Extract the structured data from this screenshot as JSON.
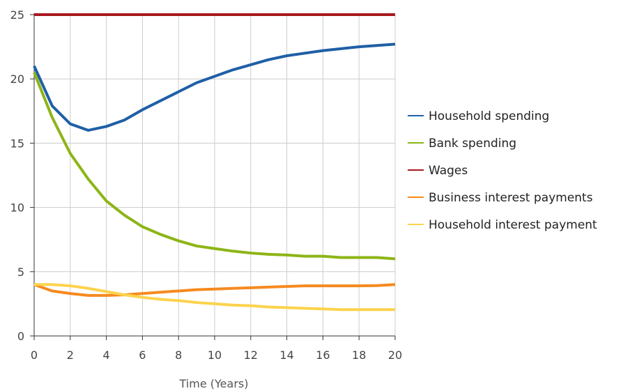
{
  "chart_data": {
    "type": "line",
    "title": "",
    "xlabel": "Time (Years)",
    "ylabel": "",
    "xlim": [
      0,
      20
    ],
    "ylim": [
      0,
      25
    ],
    "x_ticks": [
      0,
      2,
      4,
      6,
      8,
      10,
      12,
      14,
      16,
      18,
      20
    ],
    "y_ticks": [
      0,
      5,
      10,
      15,
      20,
      25
    ],
    "grid": true,
    "legend_position": "right",
    "x": [
      0,
      1,
      2,
      3,
      4,
      5,
      6,
      7,
      8,
      9,
      10,
      11,
      12,
      13,
      14,
      15,
      16,
      17,
      18,
      19,
      20
    ],
    "series": [
      {
        "name": "Household spending",
        "color": "#1f5fa6",
        "values": [
          21.0,
          17.9,
          16.5,
          16.0,
          16.3,
          16.8,
          17.6,
          18.3,
          19.0,
          19.7,
          20.2,
          20.7,
          21.1,
          21.5,
          21.8,
          22.0,
          22.2,
          22.35,
          22.5,
          22.6,
          22.7
        ]
      },
      {
        "name": "Bank spending",
        "color": "#8db516",
        "values": [
          20.5,
          17.0,
          14.2,
          12.2,
          10.5,
          9.4,
          8.5,
          7.9,
          7.4,
          7.0,
          6.8,
          6.6,
          6.45,
          6.35,
          6.3,
          6.2,
          6.2,
          6.1,
          6.1,
          6.1,
          6.0
        ]
      },
      {
        "name": "Wages",
        "color": "#a8181e",
        "values": [
          25,
          25,
          25,
          25,
          25,
          25,
          25,
          25,
          25,
          25,
          25,
          25,
          25,
          25,
          25,
          25,
          25,
          25,
          25,
          25,
          25
        ]
      },
      {
        "name": "Business interest payments",
        "color": "#f58a1f",
        "values": [
          4.0,
          3.5,
          3.3,
          3.15,
          3.15,
          3.2,
          3.3,
          3.4,
          3.5,
          3.6,
          3.65,
          3.7,
          3.75,
          3.8,
          3.85,
          3.9,
          3.9,
          3.9,
          3.9,
          3.92,
          4.0
        ]
      },
      {
        "name": "Household interest payment",
        "color": "#fdd34d",
        "values": [
          4.0,
          4.0,
          3.9,
          3.7,
          3.45,
          3.2,
          3.0,
          2.85,
          2.75,
          2.6,
          2.5,
          2.4,
          2.35,
          2.25,
          2.2,
          2.15,
          2.1,
          2.05,
          2.05,
          2.05,
          2.05
        ]
      }
    ],
    "colors": {
      "grid": "#cccccc",
      "axis": "#333333",
      "background": "#ffffff"
    }
  }
}
